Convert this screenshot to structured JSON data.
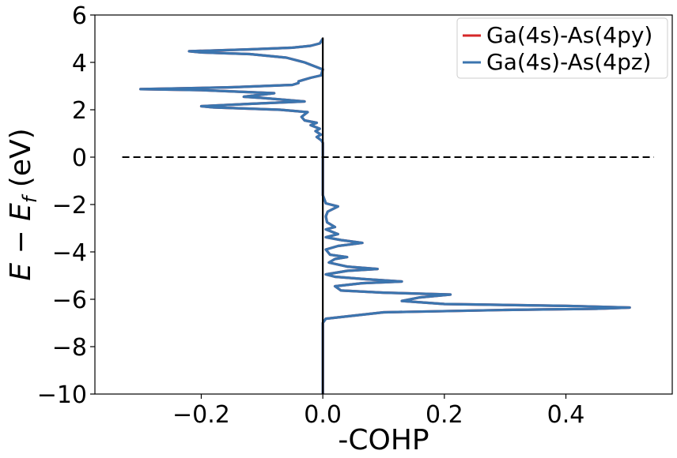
{
  "chart_data": {
    "type": "line",
    "xlabel": "-COHP",
    "ylabel": "E − E_f (eV)",
    "ylabel_parts": {
      "E": "E",
      "minus": " − ",
      "Ef": "E",
      "sub": "f",
      "unit": " (eV)"
    },
    "xlim": [
      -0.375,
      0.575
    ],
    "ylim": [
      -10,
      6
    ],
    "xticks": [
      -0.2,
      0.0,
      0.2,
      0.4
    ],
    "xtick_labels": [
      "−0.2",
      "0.0",
      "0.2",
      "0.4"
    ],
    "yticks": [
      -10,
      -8,
      -6,
      -4,
      -2,
      0,
      2,
      4,
      6
    ],
    "ytick_labels": [
      "−10",
      "−8",
      "−6",
      "−4",
      "−2",
      "0",
      "2",
      "4",
      "6"
    ],
    "legend_position": "top-right",
    "fermi_line": {
      "y": 0,
      "x_range": [
        -0.33,
        0.545
      ],
      "style": "dashed",
      "color": "#000000"
    },
    "zero_line": {
      "x": 0,
      "y_range": [
        -10,
        5.05
      ],
      "color": "#000000"
    },
    "series": [
      {
        "name": "Ga(4s)-As(4py)",
        "color": "#d62728",
        "points": [
          [
            0,
            -10
          ],
          [
            0,
            -7.0
          ],
          [
            0.005,
            -6.82
          ],
          [
            0.1,
            -6.55
          ],
          [
            0.3,
            -6.45
          ],
          [
            0.45,
            -6.4
          ],
          [
            0.505,
            -6.35
          ],
          [
            0.4,
            -6.28
          ],
          [
            0.2,
            -6.2
          ],
          [
            0.13,
            -6.07
          ],
          [
            0.16,
            -5.92
          ],
          [
            0.21,
            -5.8
          ],
          [
            0.1,
            -5.72
          ],
          [
            0.03,
            -5.63
          ],
          [
            0.02,
            -5.45
          ],
          [
            0.065,
            -5.32
          ],
          [
            0.13,
            -5.25
          ],
          [
            0.07,
            -5.15
          ],
          [
            0.02,
            -5.05
          ],
          [
            0.005,
            -4.95
          ],
          [
            0.04,
            -4.8
          ],
          [
            0.09,
            -4.72
          ],
          [
            0.04,
            -4.62
          ],
          [
            0.01,
            -4.45
          ],
          [
            0.02,
            -4.3
          ],
          [
            0.04,
            -4.22
          ],
          [
            0.012,
            -4.12
          ],
          [
            0.005,
            -3.9
          ],
          [
            0.025,
            -3.75
          ],
          [
            0.065,
            -3.62
          ],
          [
            0.03,
            -3.5
          ],
          [
            0.005,
            -3.38
          ],
          [
            0.025,
            -3.25
          ],
          [
            0.005,
            -3.05
          ],
          [
            0.02,
            -2.95
          ],
          [
            0.007,
            -2.75
          ],
          [
            0.005,
            -2.5
          ],
          [
            0.008,
            -2.3
          ],
          [
            0.025,
            -2.08
          ],
          [
            0.005,
            -1.95
          ],
          [
            0.0,
            -1.6
          ],
          [
            0.0,
            0.6
          ],
          [
            -0.002,
            0.7
          ],
          [
            -0.01,
            0.85
          ],
          [
            -0.003,
            0.95
          ],
          [
            -0.012,
            1.1
          ],
          [
            -0.005,
            1.2
          ],
          [
            -0.02,
            1.35
          ],
          [
            -0.01,
            1.45
          ],
          [
            -0.03,
            1.55
          ],
          [
            -0.035,
            1.7
          ],
          [
            -0.025,
            1.9
          ],
          [
            -0.07,
            2.0
          ],
          [
            -0.18,
            2.1
          ],
          [
            -0.2,
            2.15
          ],
          [
            -0.12,
            2.25
          ],
          [
            -0.03,
            2.35
          ],
          [
            -0.1,
            2.5
          ],
          [
            -0.13,
            2.55
          ],
          [
            -0.08,
            2.7
          ],
          [
            -0.2,
            2.83
          ],
          [
            -0.3,
            2.87
          ],
          [
            -0.15,
            2.95
          ],
          [
            -0.05,
            3.05
          ],
          [
            -0.04,
            3.13
          ],
          [
            -0.04,
            3.2
          ],
          [
            -0.02,
            3.35
          ],
          [
            -0.003,
            3.45
          ],
          [
            0.0,
            3.7
          ],
          [
            -0.03,
            4.0
          ],
          [
            -0.06,
            4.2
          ],
          [
            -0.12,
            4.35
          ],
          [
            -0.2,
            4.42
          ],
          [
            -0.22,
            4.47
          ],
          [
            -0.12,
            4.55
          ],
          [
            -0.05,
            4.62
          ],
          [
            -0.02,
            4.7
          ],
          [
            -0.005,
            4.8
          ],
          [
            0.0,
            5.0
          ]
        ]
      },
      {
        "name": "Ga(4s)-As(4pz)",
        "color": "#3b75af",
        "points": [
          [
            0,
            -10
          ],
          [
            0,
            -7.0
          ],
          [
            0.005,
            -6.82
          ],
          [
            0.1,
            -6.55
          ],
          [
            0.3,
            -6.45
          ],
          [
            0.45,
            -6.4
          ],
          [
            0.505,
            -6.35
          ],
          [
            0.4,
            -6.28
          ],
          [
            0.2,
            -6.2
          ],
          [
            0.13,
            -6.07
          ],
          [
            0.16,
            -5.92
          ],
          [
            0.21,
            -5.8
          ],
          [
            0.1,
            -5.72
          ],
          [
            0.03,
            -5.63
          ],
          [
            0.02,
            -5.45
          ],
          [
            0.065,
            -5.32
          ],
          [
            0.13,
            -5.25
          ],
          [
            0.07,
            -5.15
          ],
          [
            0.02,
            -5.05
          ],
          [
            0.005,
            -4.95
          ],
          [
            0.04,
            -4.8
          ],
          [
            0.09,
            -4.72
          ],
          [
            0.04,
            -4.62
          ],
          [
            0.01,
            -4.45
          ],
          [
            0.02,
            -4.3
          ],
          [
            0.04,
            -4.22
          ],
          [
            0.012,
            -4.12
          ],
          [
            0.005,
            -3.9
          ],
          [
            0.025,
            -3.75
          ],
          [
            0.065,
            -3.62
          ],
          [
            0.03,
            -3.5
          ],
          [
            0.005,
            -3.38
          ],
          [
            0.025,
            -3.25
          ],
          [
            0.005,
            -3.05
          ],
          [
            0.02,
            -2.95
          ],
          [
            0.007,
            -2.75
          ],
          [
            0.005,
            -2.5
          ],
          [
            0.008,
            -2.3
          ],
          [
            0.025,
            -2.08
          ],
          [
            0.005,
            -1.95
          ],
          [
            0.0,
            -1.6
          ],
          [
            0.0,
            0.6
          ],
          [
            -0.002,
            0.7
          ],
          [
            -0.01,
            0.85
          ],
          [
            -0.003,
            0.95
          ],
          [
            -0.012,
            1.1
          ],
          [
            -0.005,
            1.2
          ],
          [
            -0.02,
            1.35
          ],
          [
            -0.01,
            1.45
          ],
          [
            -0.03,
            1.55
          ],
          [
            -0.035,
            1.7
          ],
          [
            -0.025,
            1.9
          ],
          [
            -0.07,
            2.0
          ],
          [
            -0.18,
            2.1
          ],
          [
            -0.2,
            2.15
          ],
          [
            -0.12,
            2.25
          ],
          [
            -0.03,
            2.35
          ],
          [
            -0.1,
            2.5
          ],
          [
            -0.13,
            2.55
          ],
          [
            -0.08,
            2.7
          ],
          [
            -0.2,
            2.83
          ],
          [
            -0.3,
            2.87
          ],
          [
            -0.15,
            2.95
          ],
          [
            -0.05,
            3.05
          ],
          [
            -0.04,
            3.13
          ],
          [
            -0.04,
            3.2
          ],
          [
            -0.02,
            3.35
          ],
          [
            -0.003,
            3.45
          ],
          [
            0.0,
            3.7
          ],
          [
            -0.03,
            4.0
          ],
          [
            -0.06,
            4.2
          ],
          [
            -0.12,
            4.35
          ],
          [
            -0.2,
            4.42
          ],
          [
            -0.22,
            4.47
          ],
          [
            -0.12,
            4.55
          ],
          [
            -0.05,
            4.62
          ],
          [
            -0.02,
            4.7
          ],
          [
            -0.005,
            4.8
          ],
          [
            0.0,
            5.0
          ]
        ]
      }
    ]
  }
}
